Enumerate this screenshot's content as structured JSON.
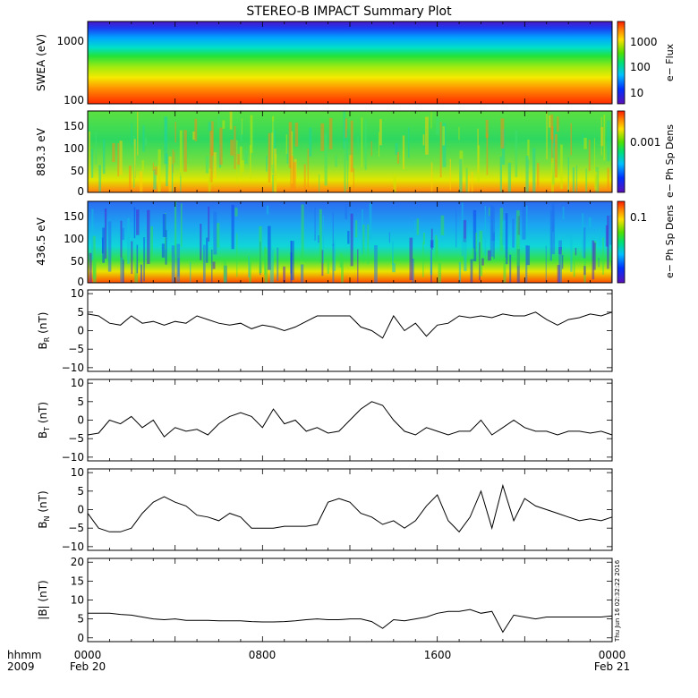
{
  "title": "STEREO-B IMPACT Summary Plot",
  "time_axis": {
    "row1_labels": [
      "hhmm",
      "0000",
      "0800",
      "1600",
      "0000"
    ],
    "row2_labels": [
      "2009",
      "Feb 20",
      "",
      "",
      "Feb 21"
    ],
    "range_hours": [
      0,
      24
    ]
  },
  "timestamp": "Thu Jun 16 02:32:22 2016",
  "panels": [
    {
      "id": "swea",
      "ylabel": "SWEA (eV)",
      "yticks": [
        "1000",
        "100"
      ],
      "colorbar_label": "e− Flux",
      "colorbar_ticks": [
        "1000",
        "100",
        "10"
      ]
    },
    {
      "id": "pad883",
      "ylabel": "883.3 eV",
      "yticks": [
        "150",
        "100",
        "50",
        "0"
      ],
      "colorbar_label": "e− Ph Sp Dens",
      "colorbar_ticks": [
        "0.001"
      ]
    },
    {
      "id": "pad436",
      "ylabel": "436.5 eV",
      "yticks": [
        "150",
        "100",
        "50",
        "0"
      ],
      "colorbar_label": "e− Ph Sp Dens",
      "colorbar_ticks": [
        "0.1"
      ]
    },
    {
      "id": "br",
      "ylabel": "B_R (nT)",
      "ylabel_main": "B",
      "ylabel_sub": "R",
      "ylabel_unit": " (nT)",
      "yticks": [
        "10",
        "5",
        "0",
        "−5",
        "−10"
      ],
      "ylim": [
        -11,
        11
      ]
    },
    {
      "id": "bt",
      "ylabel": "B_T (nT)",
      "ylabel_main": "B",
      "ylabel_sub": "T",
      "ylabel_unit": " (nT)",
      "yticks": [
        "10",
        "5",
        "0",
        "−5",
        "−10"
      ],
      "ylim": [
        -11,
        11
      ]
    },
    {
      "id": "bn",
      "ylabel": "B_N (nT)",
      "ylabel_main": "B",
      "ylabel_sub": "N",
      "ylabel_unit": " (nT)",
      "yticks": [
        "10",
        "5",
        "0",
        "−5",
        "−10"
      ],
      "ylim": [
        -11,
        11
      ]
    },
    {
      "id": "bmag",
      "ylabel": "|B| (nT)",
      "yticks": [
        "20",
        "15",
        "10",
        "5",
        "0"
      ],
      "ylim": [
        -1,
        21
      ]
    }
  ],
  "chart_data": [
    {
      "type": "line",
      "name": "B_R (nT)",
      "ylim": [
        -11,
        11
      ],
      "x_hours": [
        0,
        0.5,
        1,
        1.5,
        2,
        2.5,
        3,
        3.5,
        4,
        4.5,
        5,
        5.5,
        6,
        6.5,
        7,
        7.5,
        8,
        8.5,
        9,
        9.5,
        10,
        10.5,
        11,
        11.5,
        12,
        12.5,
        13,
        13.5,
        14,
        14.5,
        15,
        15.5,
        16,
        16.5,
        17,
        17.5,
        18,
        18.5,
        19,
        19.5,
        20,
        20.5,
        21,
        21.5,
        22,
        22.5,
        23,
        23.5,
        24
      ],
      "values": [
        4.5,
        4,
        2,
        1.5,
        4,
        2,
        2.5,
        1.5,
        2.5,
        2,
        4,
        3,
        2,
        1.5,
        2,
        0.5,
        1.5,
        1,
        0,
        1,
        2.5,
        4,
        4,
        4,
        4,
        1,
        0,
        -2,
        4,
        0,
        2,
        -1.5,
        1.5,
        2,
        4,
        3.5,
        4,
        3.5,
        4.5,
        4,
        4,
        5,
        3,
        1.5,
        3,
        3.5,
        4.5,
        4,
        5
      ]
    },
    {
      "type": "line",
      "name": "B_T (nT)",
      "ylim": [
        -11,
        11
      ],
      "x_hours": [
        0,
        0.5,
        1,
        1.5,
        2,
        2.5,
        3,
        3.5,
        4,
        4.5,
        5,
        5.5,
        6,
        6.5,
        7,
        7.5,
        8,
        8.5,
        9,
        9.5,
        10,
        10.5,
        11,
        11.5,
        12,
        12.5,
        13,
        13.5,
        14,
        14.5,
        15,
        15.5,
        16,
        16.5,
        17,
        17.5,
        18,
        18.5,
        19,
        19.5,
        20,
        20.5,
        21,
        21.5,
        22,
        22.5,
        23,
        23.5,
        24
      ],
      "values": [
        -4,
        -3.5,
        0,
        -1,
        1,
        -2,
        0,
        -4.5,
        -2,
        -3,
        -2.5,
        -4,
        -1,
        1,
        2,
        1,
        -2,
        3,
        -1,
        0,
        -3,
        -2,
        -3.5,
        -3,
        0,
        3,
        5,
        4,
        0,
        -3,
        -4,
        -2,
        -3,
        -4,
        -3,
        -3,
        0,
        -4,
        -2,
        0,
        -2,
        -3,
        -3,
        -4,
        -3,
        -3,
        -3.5,
        -3,
        -4
      ]
    },
    {
      "type": "line",
      "name": "B_N (nT)",
      "ylim": [
        -11,
        11
      ],
      "x_hours": [
        0,
        0.5,
        1,
        1.5,
        2,
        2.5,
        3,
        3.5,
        4,
        4.5,
        5,
        5.5,
        6,
        6.5,
        7,
        7.5,
        8,
        8.5,
        9,
        9.5,
        10,
        10.5,
        11,
        11.5,
        12,
        12.5,
        13,
        13.5,
        14,
        14.5,
        15,
        15.5,
        16,
        16.5,
        17,
        17.5,
        18,
        18.5,
        19,
        19.5,
        20,
        20.5,
        21,
        21.5,
        22,
        22.5,
        23,
        23.5,
        24
      ],
      "values": [
        -1,
        -5,
        -6,
        -6,
        -5,
        -1,
        2,
        3.5,
        2,
        1,
        -1.5,
        -2,
        -3,
        -1,
        -2,
        -5,
        -5,
        -5,
        -4.5,
        -4.5,
        -4.5,
        -4,
        2,
        3,
        2,
        -1,
        -2,
        -4,
        -3,
        -5,
        -3,
        1,
        4,
        -3,
        -6,
        -2,
        5,
        -5,
        6.5,
        -3,
        3,
        1,
        0,
        -1,
        -2,
        -3,
        -2.5,
        -3,
        -2
      ]
    },
    {
      "type": "line",
      "name": "|B| (nT)",
      "ylim": [
        -1,
        21
      ],
      "x_hours": [
        0,
        0.5,
        1,
        1.5,
        2,
        2.5,
        3,
        3.5,
        4,
        4.5,
        5,
        5.5,
        6,
        6.5,
        7,
        7.5,
        8,
        8.5,
        9,
        9.5,
        10,
        10.5,
        11,
        11.5,
        12,
        12.5,
        13,
        13.5,
        14,
        14.5,
        15,
        15.5,
        16,
        16.5,
        17,
        17.5,
        18,
        18.5,
        19,
        19.5,
        20,
        20.5,
        21,
        21.5,
        22,
        22.5,
        23,
        23.5,
        24
      ],
      "values": [
        6.5,
        6.5,
        6.5,
        6.2,
        6,
        5.5,
        5,
        4.8,
        5,
        4.6,
        4.6,
        4.6,
        4.5,
        4.5,
        4.5,
        4.3,
        4.2,
        4.2,
        4.3,
        4.5,
        4.8,
        5,
        4.8,
        4.8,
        5,
        5,
        4.3,
        2.5,
        4.8,
        4.5,
        5,
        5.5,
        6.5,
        7,
        7,
        7.5,
        6.5,
        7,
        1.5,
        6,
        5.5,
        5,
        5.5,
        5.5,
        5.5,
        5.5,
        5.5,
        5.5,
        5.8
      ]
    }
  ]
}
